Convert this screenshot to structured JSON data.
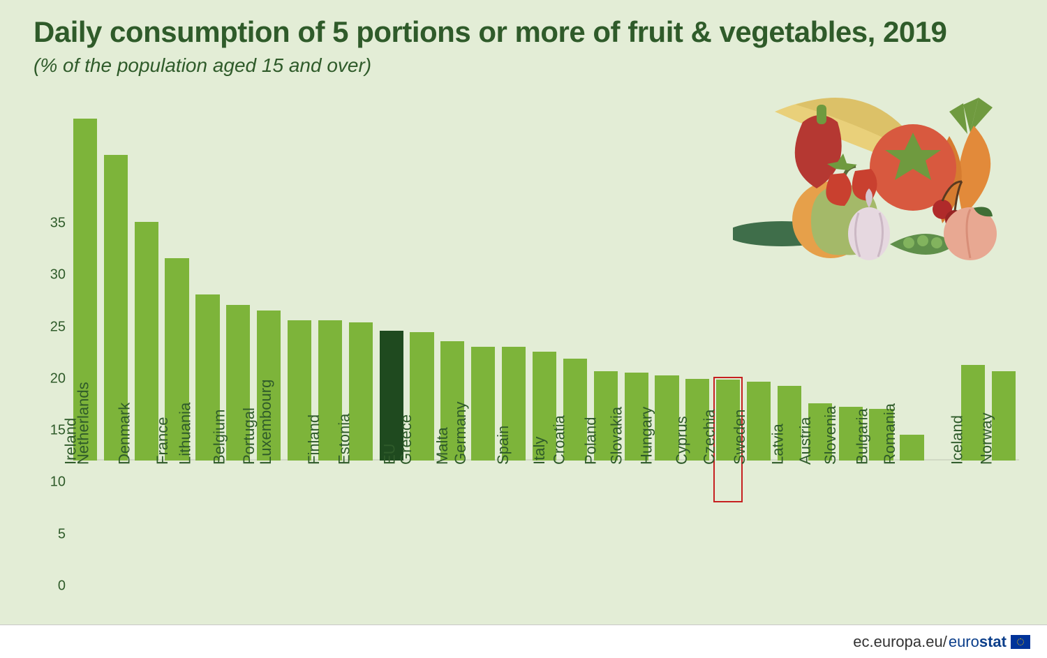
{
  "title": "Daily consumption of 5 portions or more of fruit & vegetables, 2019",
  "subtitle": "(% of the population aged 15 and over)",
  "footer": {
    "url_prefix": "ec.europa.eu/",
    "brand_light": "euro",
    "brand_bold": "stat"
  },
  "chart": {
    "type": "bar",
    "ylim": [
      0,
      35
    ],
    "ytick_step": 5,
    "label_fontsize": 22,
    "tick_fontsize": 20,
    "background_color": "#e3edd6",
    "baseline_color": "#d0d9c4",
    "bar_color": "#7db43a",
    "bar_color_highlight": "#1f4a1f",
    "outline_color": "#c62020",
    "title_color": "#2f5b2a",
    "bar_width_ratio": 0.78,
    "group_gap_after": "Romania",
    "group_gap_slots": 1,
    "categories": [
      "Ireland",
      "Netherlands",
      "Denmark",
      "France",
      "Lithuania",
      "Belgium",
      "Portugal",
      "Luxembourg",
      "Finland",
      "Estonia",
      "EU",
      "Greece",
      "Malta",
      "Germany",
      "Spain",
      "Italy",
      "Croatia",
      "Poland",
      "Slovakia",
      "Hungary",
      "Cyprus",
      "Czechia",
      "Sweden",
      "Latvia",
      "Austria",
      "Slovenia",
      "Bulgaria",
      "Romania",
      "Iceland",
      "Norway"
    ],
    "values": [
      33.0,
      29.5,
      23.0,
      19.5,
      16.0,
      15.0,
      14.5,
      13.5,
      13.5,
      13.3,
      12.5,
      12.4,
      11.5,
      11.0,
      11.0,
      10.5,
      9.8,
      8.6,
      8.5,
      8.2,
      7.9,
      7.8,
      7.6,
      7.2,
      5.5,
      5.2,
      5.0,
      2.5,
      9.2,
      8.6
    ],
    "highlight_dark": [
      "EU"
    ],
    "highlight_outline": [
      "Czechia"
    ]
  },
  "illustration": {
    "colors": {
      "tomato": "#d8593f",
      "pepper": "#b53832",
      "banana": "#e9d07a",
      "carrot": "#e28a3a",
      "carrot_top": "#6f9a3f",
      "orange": "#e6a04a",
      "apple": "#a4b969",
      "peach": "#e8a892",
      "pea": "#5f8f4a",
      "cucumber": "#3f6e4a",
      "onion": "#e6d8e0",
      "cherry": "#b02a2a",
      "strawberry": "#c9402f",
      "leaf": "#3f6e35",
      "star": "#6f9a3f"
    }
  }
}
